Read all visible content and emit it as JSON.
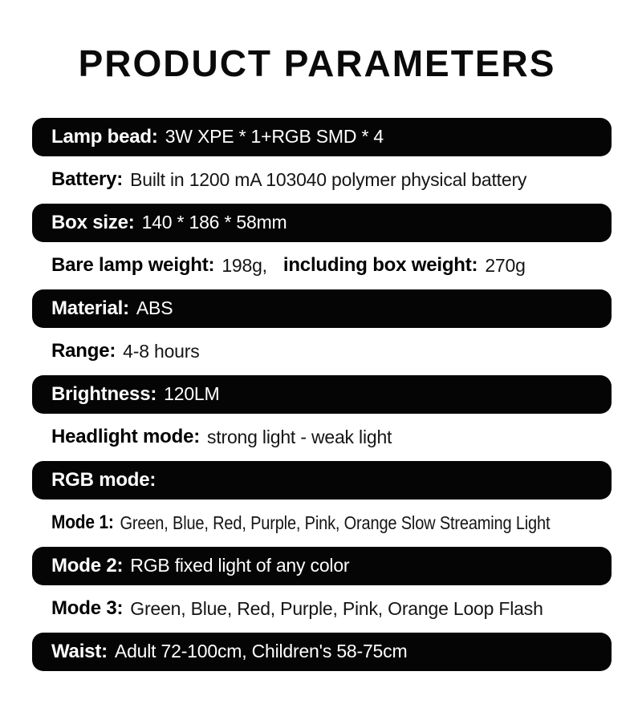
{
  "page": {
    "title": "PRODUCT PARAMETERS"
  },
  "colors": {
    "bar_background": "#050505",
    "bar_text": "#ffffff",
    "page_background": "#ffffff",
    "body_text": "#151515"
  },
  "rows": [
    {
      "label": "Lamp bead:",
      "value": "3W XPE * 1+RGB SMD * 4"
    },
    {
      "label": "Battery:",
      "value": "Built in 1200 mA 103040 polymer physical battery"
    },
    {
      "label": "Box size:",
      "value": "140 * 186 * 58mm"
    },
    {
      "label": "Bare lamp weight:",
      "value": "198g,",
      "label2": "including box weight:",
      "value2": "270g"
    },
    {
      "label": "Material:",
      "value": "ABS"
    },
    {
      "label": "Range:",
      "value": "4-8 hours"
    },
    {
      "label": "Brightness:",
      "value": "120LM"
    },
    {
      "label": "Headlight mode:",
      "value": "strong light - weak light"
    },
    {
      "label": "RGB mode:",
      "value": ""
    },
    {
      "label": "Mode 1:",
      "value": "Green, Blue, Red, Purple, Pink, Orange Slow Streaming Light"
    },
    {
      "label": "Mode 2:",
      "value": "RGB fixed light of any color"
    },
    {
      "label": "Mode 3:",
      "value": "Green, Blue, Red, Purple, Pink, Orange Loop Flash"
    },
    {
      "label": "Waist:",
      "value": "Adult 72-100cm, Children's 58-75cm"
    }
  ]
}
